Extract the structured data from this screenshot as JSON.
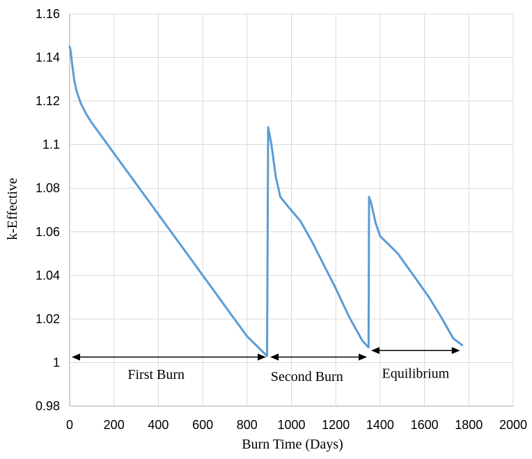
{
  "chart_data": {
    "type": "line",
    "title": "",
    "xlabel": "Burn Time (Days)",
    "ylabel": "k-Effective",
    "xlim": [
      0,
      2000
    ],
    "ylim": [
      0.98,
      1.16
    ],
    "grid": true,
    "xticks": [
      0,
      200,
      400,
      600,
      800,
      1000,
      1200,
      1400,
      1600,
      1800,
      2000
    ],
    "yticks": [
      0.98,
      1,
      1.02,
      1.04,
      1.06,
      1.08,
      1.1,
      1.12,
      1.14,
      1.16
    ],
    "xtick_labels": [
      "0",
      "200",
      "400",
      "600",
      "800",
      "1000",
      "1200",
      "1400",
      "1600",
      "1800",
      "2000"
    ],
    "ytick_labels": [
      "0.98",
      "1",
      "1.02",
      "1.04",
      "1.06",
      "1.08",
      "1.1",
      "1.12",
      "1.14",
      "1.16"
    ],
    "line_color": "#5b9bd5",
    "series": [
      {
        "x": [
          0,
          5,
          10,
          20,
          30,
          50,
          75,
          100,
          150,
          200,
          300,
          400,
          500,
          600,
          700,
          800,
          890,
          895,
          910,
          930,
          950,
          990,
          1040,
          1090,
          1140,
          1200,
          1260,
          1320,
          1348,
          1350,
          1360,
          1380,
          1400,
          1430,
          1480,
          1550,
          1620,
          1680,
          1730,
          1770
        ],
        "y": [
          1.145,
          1.143,
          1.138,
          1.13,
          1.125,
          1.119,
          1.114,
          1.11,
          1.103,
          1.096,
          1.082,
          1.068,
          1.054,
          1.04,
          1.026,
          1.012,
          1.003,
          1.108,
          1.1,
          1.085,
          1.076,
          1.071,
          1.065,
          1.056,
          1.046,
          1.034,
          1.021,
          1.01,
          1.007,
          1.076,
          1.073,
          1.064,
          1.058,
          1.055,
          1.05,
          1.04,
          1.03,
          1.02,
          1.011,
          1.008
        ]
      }
    ],
    "annotations": [
      {
        "text": "First Burn",
        "x_start": 0,
        "x_end": 895,
        "arrow_y": 1.0025,
        "label_x": 390,
        "label_y": 0.9925
      },
      {
        "text": "Second Burn",
        "x_start": 895,
        "x_end": 1350,
        "arrow_y": 1.0025,
        "label_x": 1070,
        "label_y": 0.9915
      },
      {
        "text": "Equilibrium",
        "x_start": 1350,
        "x_end": 1770,
        "arrow_y": 1.0055,
        "label_x": 1560,
        "label_y": 0.993
      }
    ]
  }
}
